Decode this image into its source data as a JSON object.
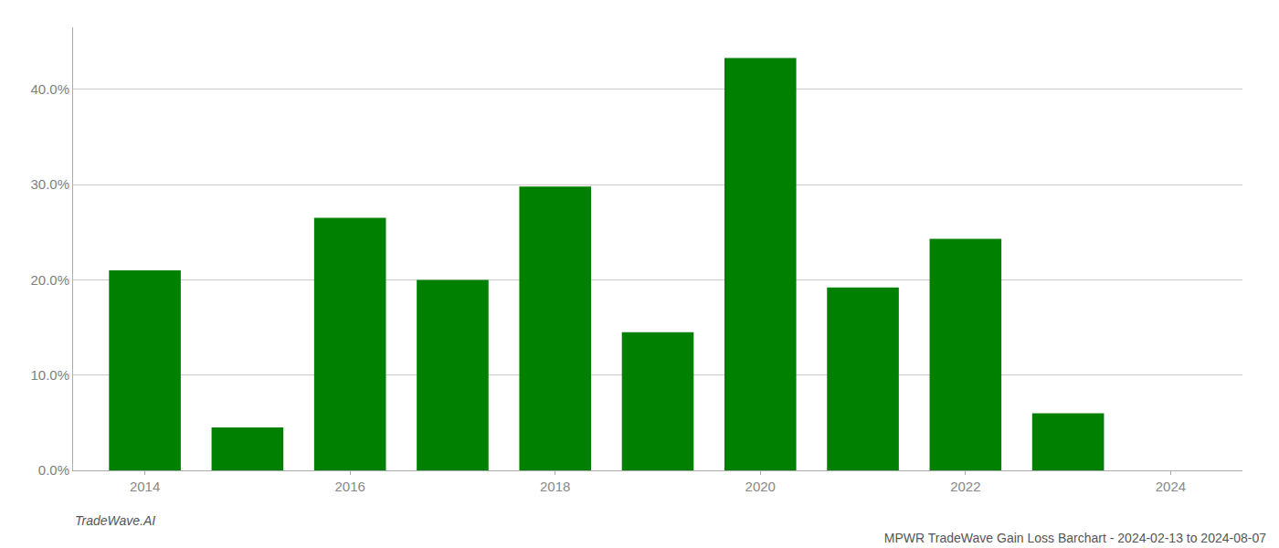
{
  "chart_data": {
    "type": "bar",
    "title": "MPWR TradeWave Gain Loss Barchart - 2024-02-13 to 2024-08-07",
    "annotations": [
      "TradeWave.AI"
    ],
    "x": [
      2014,
      2015,
      2016,
      2017,
      2018,
      2019,
      2020,
      2021,
      2022,
      2023
    ],
    "values": [
      0.21,
      0.045,
      0.265,
      0.2,
      0.298,
      0.145,
      0.433,
      0.192,
      0.243,
      0.06
    ],
    "color": "#008000",
    "xlim": [
      2013.3,
      2024.7
    ],
    "xticks": [
      2014,
      2016,
      2018,
      2020,
      2022,
      2024
    ],
    "ylim": [
      0,
      0.465
    ],
    "yticks": [
      {
        "value": 0.0,
        "label": "0.0%"
      },
      {
        "value": 0.1,
        "label": "10.0%"
      },
      {
        "value": 0.2,
        "label": "20.0%"
      },
      {
        "value": 0.3,
        "label": "30.0%"
      },
      {
        "value": 0.4,
        "label": "40.0%"
      }
    ],
    "grid": true
  }
}
